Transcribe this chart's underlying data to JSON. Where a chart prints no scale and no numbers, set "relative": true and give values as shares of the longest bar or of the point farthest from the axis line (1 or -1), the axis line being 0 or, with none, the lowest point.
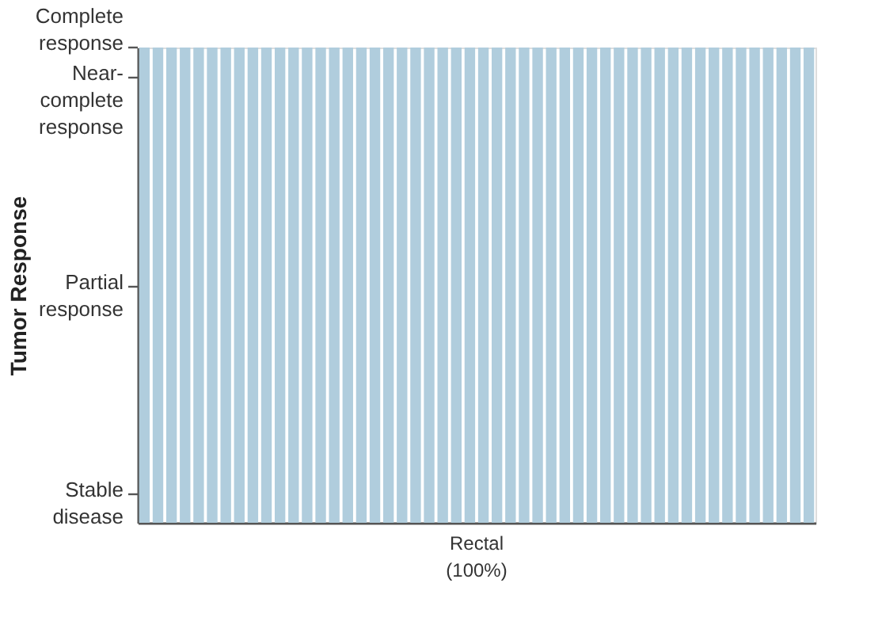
{
  "chart_data": {
    "type": "bar",
    "ylabel": "Tumor Response",
    "relative": true,
    "categories": [
      null,
      null,
      null,
      null,
      null,
      null,
      null,
      null,
      null,
      null,
      null,
      null,
      null,
      null,
      null,
      null,
      null,
      null,
      null,
      null,
      null,
      null,
      null,
      null,
      null,
      null,
      null,
      null,
      null,
      null,
      null,
      null,
      null,
      null,
      null,
      null,
      null,
      null,
      null,
      null,
      null,
      null,
      null,
      null,
      null,
      null,
      null,
      null,
      null,
      null
    ],
    "values": [
      1,
      1,
      1,
      1,
      1,
      1,
      1,
      1,
      1,
      1,
      1,
      1,
      1,
      1,
      1,
      1,
      1,
      1,
      1,
      1,
      1,
      1,
      1,
      1,
      1,
      1,
      1,
      1,
      1,
      1,
      1,
      1,
      1,
      1,
      1,
      1,
      1,
      1,
      1,
      1,
      1,
      1,
      1,
      1,
      1,
      1,
      1,
      1,
      1,
      1
    ],
    "color": "#b0cddd",
    "annotations": [
      "Complete\nresponse",
      "Near-\ncomplete\nresponse",
      "Partial\nresponse",
      "Stable\ndisease",
      "Rectal\n(100%)"
    ]
  }
}
